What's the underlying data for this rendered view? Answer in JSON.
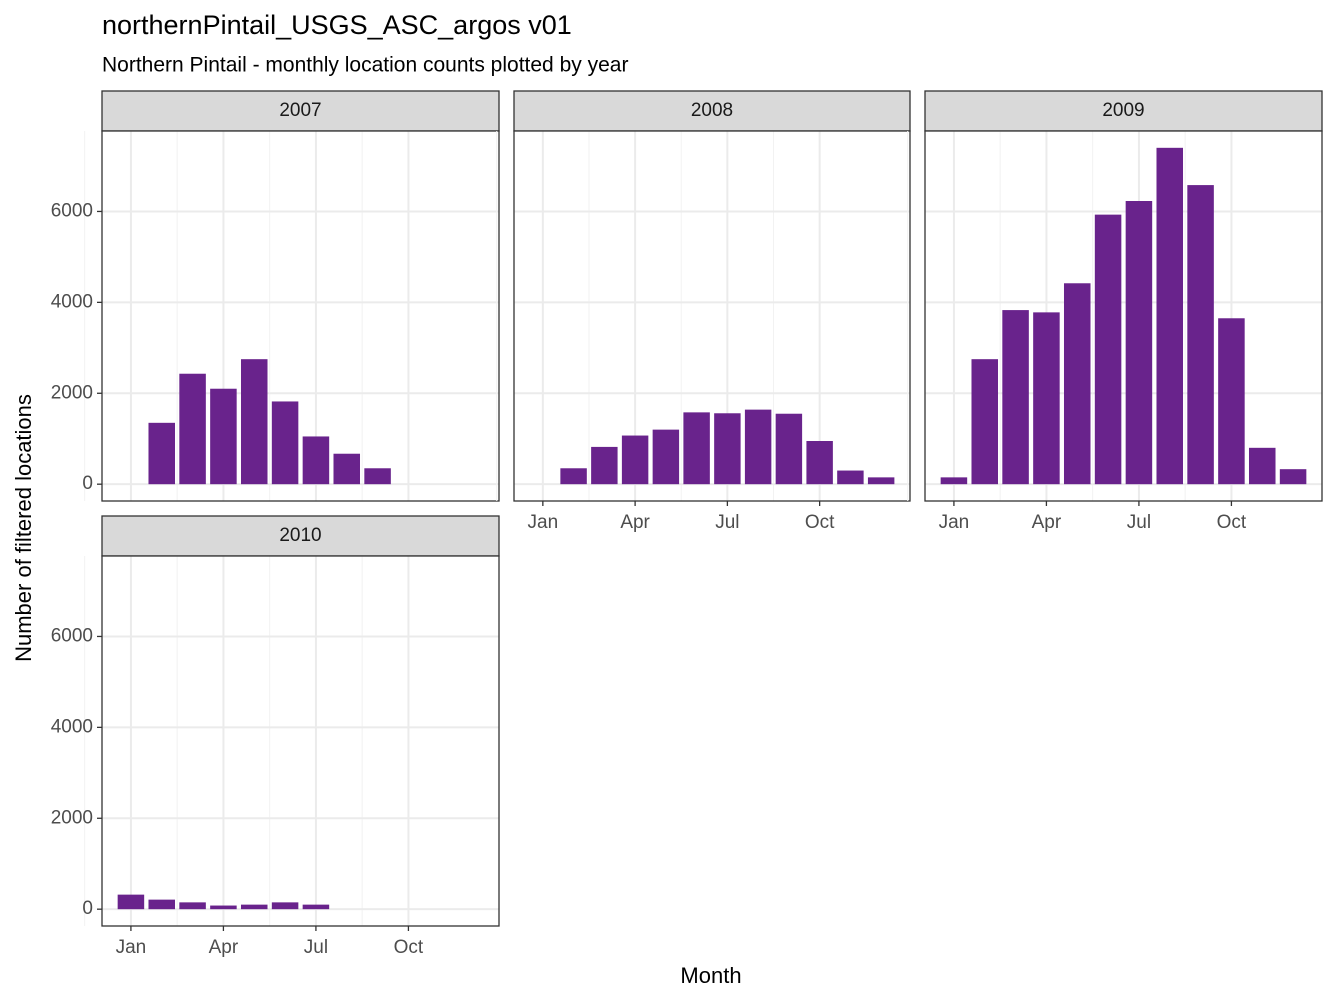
{
  "title": "northernPintail_USGS_ASC_argos v01",
  "subtitle": "Northern Pintail - monthly location counts plotted by year",
  "x_label": "Month",
  "y_label": "Number of filtered locations",
  "chart_data": [
    {
      "type": "bar",
      "title": "2007",
      "categories": [
        null,
        null,
        null,
        null,
        null,
        null,
        null,
        null,
        null,
        null,
        null,
        null
      ],
      "values": [
        null,
        1350,
        2430,
        2100,
        2750,
        1820,
        1050,
        670,
        350,
        null,
        null,
        null
      ],
      "color": "#69238c",
      "ylim": [
        -370,
        7770
      ],
      "yticks": [
        0,
        2000,
        4000,
        6000
      ],
      "grid": true
    },
    {
      "type": "bar",
      "title": "2008",
      "categories": [
        "Jan",
        null,
        null,
        "Apr",
        null,
        null,
        "Jul",
        null,
        null,
        "Oct",
        null,
        null
      ],
      "values": [
        null,
        350,
        820,
        1070,
        1200,
        1580,
        1560,
        1640,
        1550,
        950,
        300,
        150
      ],
      "color": "#69238c",
      "ylim": [
        -370,
        7770
      ],
      "yticks": [
        0,
        2000,
        4000,
        6000
      ],
      "grid": true
    },
    {
      "type": "bar",
      "title": "2009",
      "categories": [
        "Jan",
        null,
        null,
        "Apr",
        null,
        null,
        "Jul",
        null,
        null,
        "Oct",
        null,
        null
      ],
      "values": [
        150,
        2750,
        3830,
        3780,
        4420,
        5930,
        6230,
        7400,
        6580,
        3650,
        800,
        330
      ],
      "color": "#69238c",
      "ylim": [
        -370,
        7770
      ],
      "yticks": [
        0,
        2000,
        4000,
        6000
      ],
      "grid": true
    },
    {
      "type": "bar",
      "title": "2010",
      "categories": [
        "Jan",
        null,
        null,
        "Apr",
        null,
        null,
        "Jul",
        null,
        null,
        "Oct",
        null,
        null
      ],
      "values": [
        320,
        210,
        150,
        80,
        100,
        150,
        100,
        null,
        null,
        null,
        null,
        null
      ],
      "color": "#69238c",
      "ylim": [
        -370,
        7770
      ],
      "yticks": [
        0,
        2000,
        4000,
        6000
      ],
      "grid": true
    }
  ]
}
